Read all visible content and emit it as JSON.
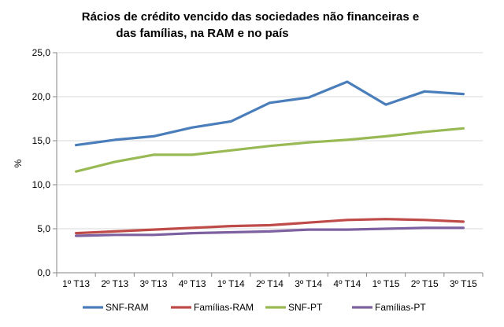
{
  "chart_data": {
    "type": "line",
    "title_lines": [
      "Rácios de crédito vencido  das sociedades  não financeiras  e",
      "das famílias, na RAM e no país"
    ],
    "xlabel": "",
    "ylabel": "%",
    "ylim": [
      0,
      25
    ],
    "yticks": [
      "0,0",
      "5,0",
      "10,0",
      "15,0",
      "20,0",
      "25,0"
    ],
    "ytick_values": [
      0,
      5,
      10,
      15,
      20,
      25
    ],
    "grid": true,
    "legend_position": "bottom",
    "categories": [
      "1º T13",
      "2º T13",
      "3º T13",
      "4º T13",
      "1º T14",
      "2º T14",
      "3º T14",
      "4º T14",
      "1º T15",
      "2º T15",
      "3º T15"
    ],
    "series": [
      {
        "name": "SNF-RAM",
        "color": "#4a7ebb",
        "values": [
          14.5,
          15.1,
          15.5,
          16.5,
          17.2,
          19.3,
          19.9,
          21.7,
          19.1,
          20.6,
          20.3
        ]
      },
      {
        "name": "Famílias-RAM",
        "color": "#be4b48",
        "values": [
          4.5,
          4.7,
          4.9,
          5.1,
          5.3,
          5.4,
          5.7,
          6.0,
          6.1,
          6.0,
          5.8
        ]
      },
      {
        "name": "SNF-PT",
        "color": "#98b954",
        "values": [
          11.5,
          12.6,
          13.4,
          13.4,
          13.9,
          14.4,
          14.8,
          15.1,
          15.5,
          16.0,
          16.4
        ]
      },
      {
        "name": "Famílias-PT",
        "color": "#7d60a0",
        "values": [
          4.2,
          4.3,
          4.3,
          4.5,
          4.6,
          4.7,
          4.9,
          4.9,
          5.0,
          5.1,
          5.1
        ]
      }
    ]
  }
}
